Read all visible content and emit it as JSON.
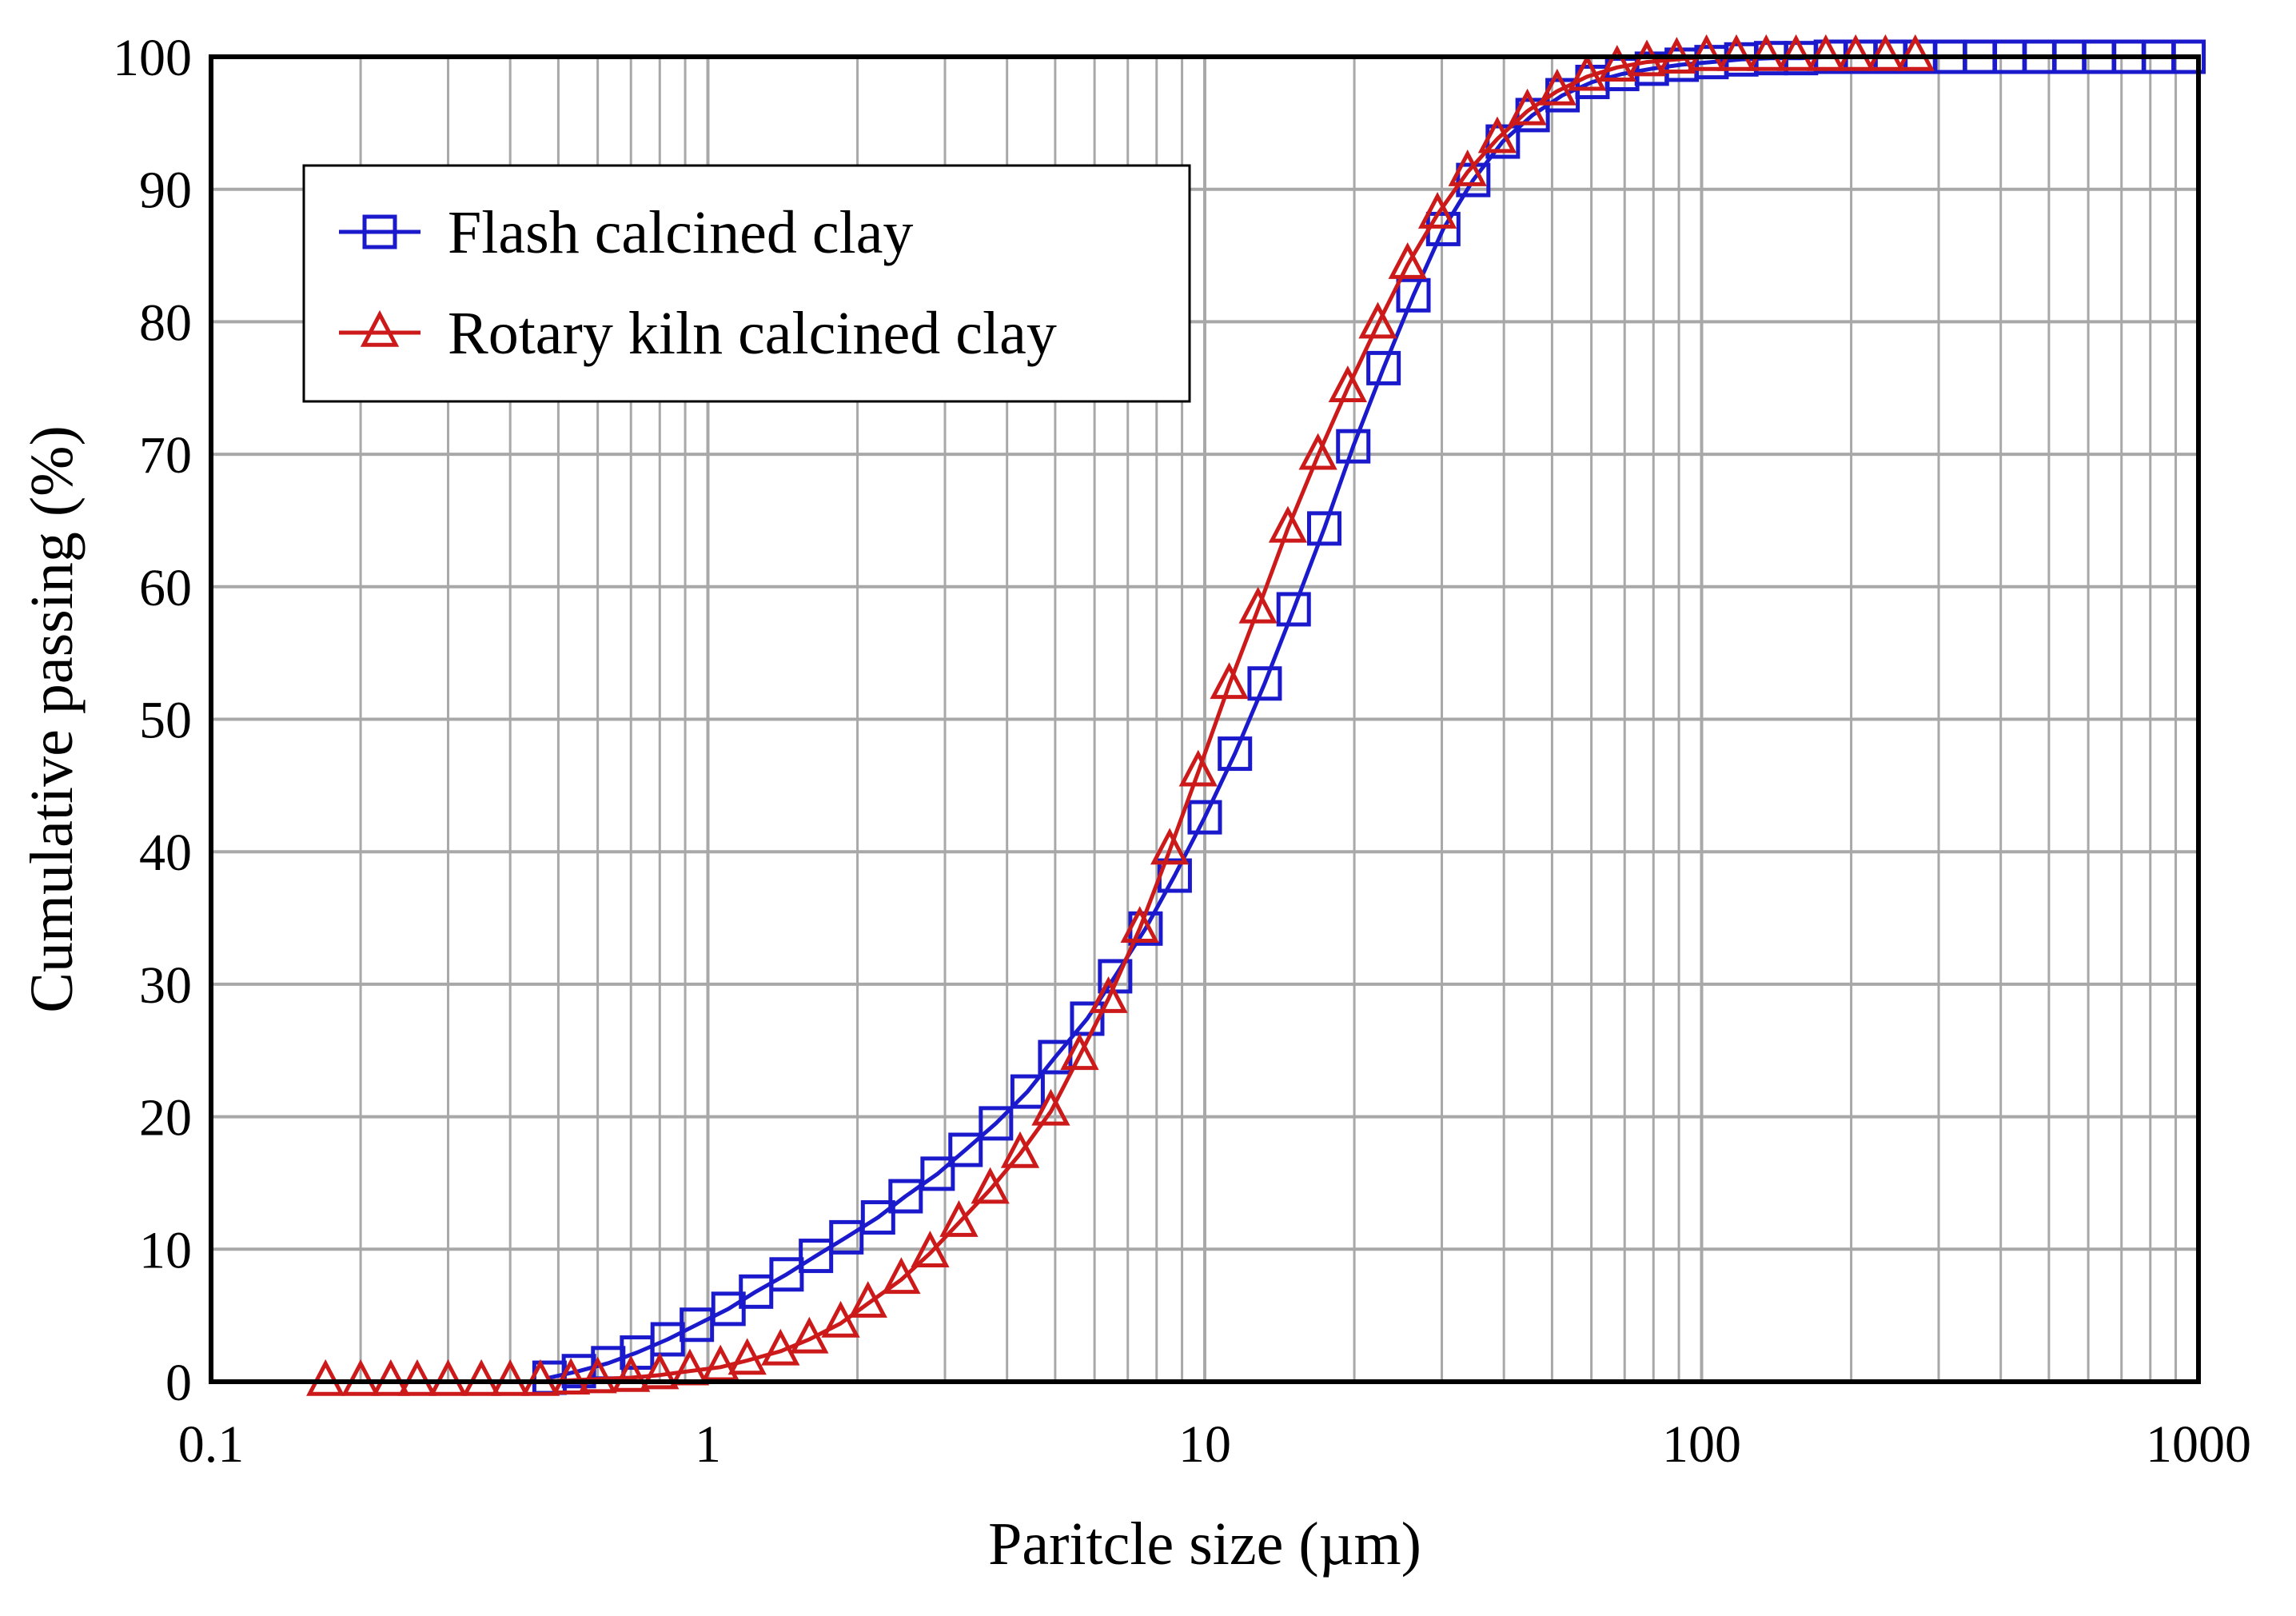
{
  "chart_data": {
    "type": "line",
    "title": "",
    "xlabel": "Paritcle size (µm)",
    "ylabel": "Cumulative passing (%)",
    "x_scale": "log",
    "xlim": [
      0.1,
      1000
    ],
    "ylim": [
      0,
      100
    ],
    "grid": true,
    "legend_position": "top-left",
    "x_ticks": [
      "0.1",
      "1",
      "10",
      "100",
      "1000"
    ],
    "y_ticks": [
      "0",
      "10",
      "20",
      "30",
      "40",
      "50",
      "60",
      "70",
      "80",
      "90",
      "100"
    ],
    "series": [
      {
        "name": "Flash calcined clay",
        "color": "#1a1acc",
        "marker": "square",
        "x": [
          0.48,
          0.55,
          0.63,
          0.72,
          0.83,
          0.95,
          1.1,
          1.25,
          1.44,
          1.65,
          1.9,
          2.2,
          2.5,
          2.9,
          3.3,
          3.8,
          4.4,
          5.0,
          5.8,
          6.6,
          7.6,
          8.7,
          10.0,
          11.5,
          13.2,
          15.1,
          17.4,
          19.9,
          22.9,
          26.3,
          30.2,
          34.7,
          39.8,
          45.7,
          52.5,
          60.3,
          69.2,
          79.4,
          91.2,
          104.7,
          120.2,
          138.0,
          158.5,
          182.0,
          208.9,
          239.9,
          275.4,
          316.2,
          363.1,
          416.9,
          478.6,
          549.5,
          631.0,
          724.4,
          831.8,
          955.0
        ],
        "y": [
          0.3,
          0.8,
          1.4,
          2.2,
          3.2,
          4.3,
          5.5,
          6.8,
          8.1,
          9.5,
          10.9,
          12.4,
          14.0,
          15.7,
          17.5,
          19.5,
          21.9,
          24.5,
          27.4,
          30.6,
          34.2,
          38.2,
          42.6,
          47.4,
          52.7,
          58.3,
          64.4,
          70.6,
          76.5,
          82.0,
          87.0,
          90.7,
          93.6,
          95.6,
          97.1,
          98.1,
          98.7,
          99.1,
          99.4,
          99.6,
          99.8,
          99.9,
          99.9,
          100,
          100,
          100,
          100,
          100,
          100,
          100,
          100,
          100,
          100,
          100,
          100,
          100
        ]
      },
      {
        "name": "Rotary kiln calcined clay",
        "color": "#cc1a1a",
        "marker": "triangle",
        "x": [
          0.17,
          0.2,
          0.23,
          0.26,
          0.3,
          0.35,
          0.4,
          0.46,
          0.53,
          0.6,
          0.7,
          0.8,
          0.92,
          1.06,
          1.2,
          1.4,
          1.6,
          1.85,
          2.1,
          2.45,
          2.8,
          3.2,
          3.7,
          4.25,
          4.9,
          5.6,
          6.4,
          7.4,
          8.5,
          9.7,
          11.2,
          12.8,
          14.7,
          16.9,
          19.4,
          22.3,
          25.6,
          29.4,
          33.8,
          38.8,
          44.6,
          51.2,
          58.8,
          67.6,
          77.6,
          89.1,
          102.3,
          117.5,
          134.9,
          154.9,
          177.8,
          204.2,
          234.4,
          269.2
        ],
        "y": [
          0,
          0,
          0,
          0,
          0,
          0,
          0,
          0,
          0.1,
          0.2,
          0.3,
          0.5,
          0.8,
          1.1,
          1.6,
          2.3,
          3.2,
          4.4,
          5.9,
          7.7,
          9.7,
          12.0,
          14.5,
          17.2,
          20.4,
          24.6,
          28.9,
          34.2,
          40.1,
          46.0,
          52.6,
          58.3,
          64.4,
          69.9,
          75.0,
          79.8,
          84.3,
          88.1,
          91.3,
          93.8,
          95.9,
          97.4,
          98.5,
          99.2,
          99.6,
          99.8,
          100,
          100,
          100,
          100,
          100,
          100,
          100,
          100
        ]
      }
    ]
  }
}
